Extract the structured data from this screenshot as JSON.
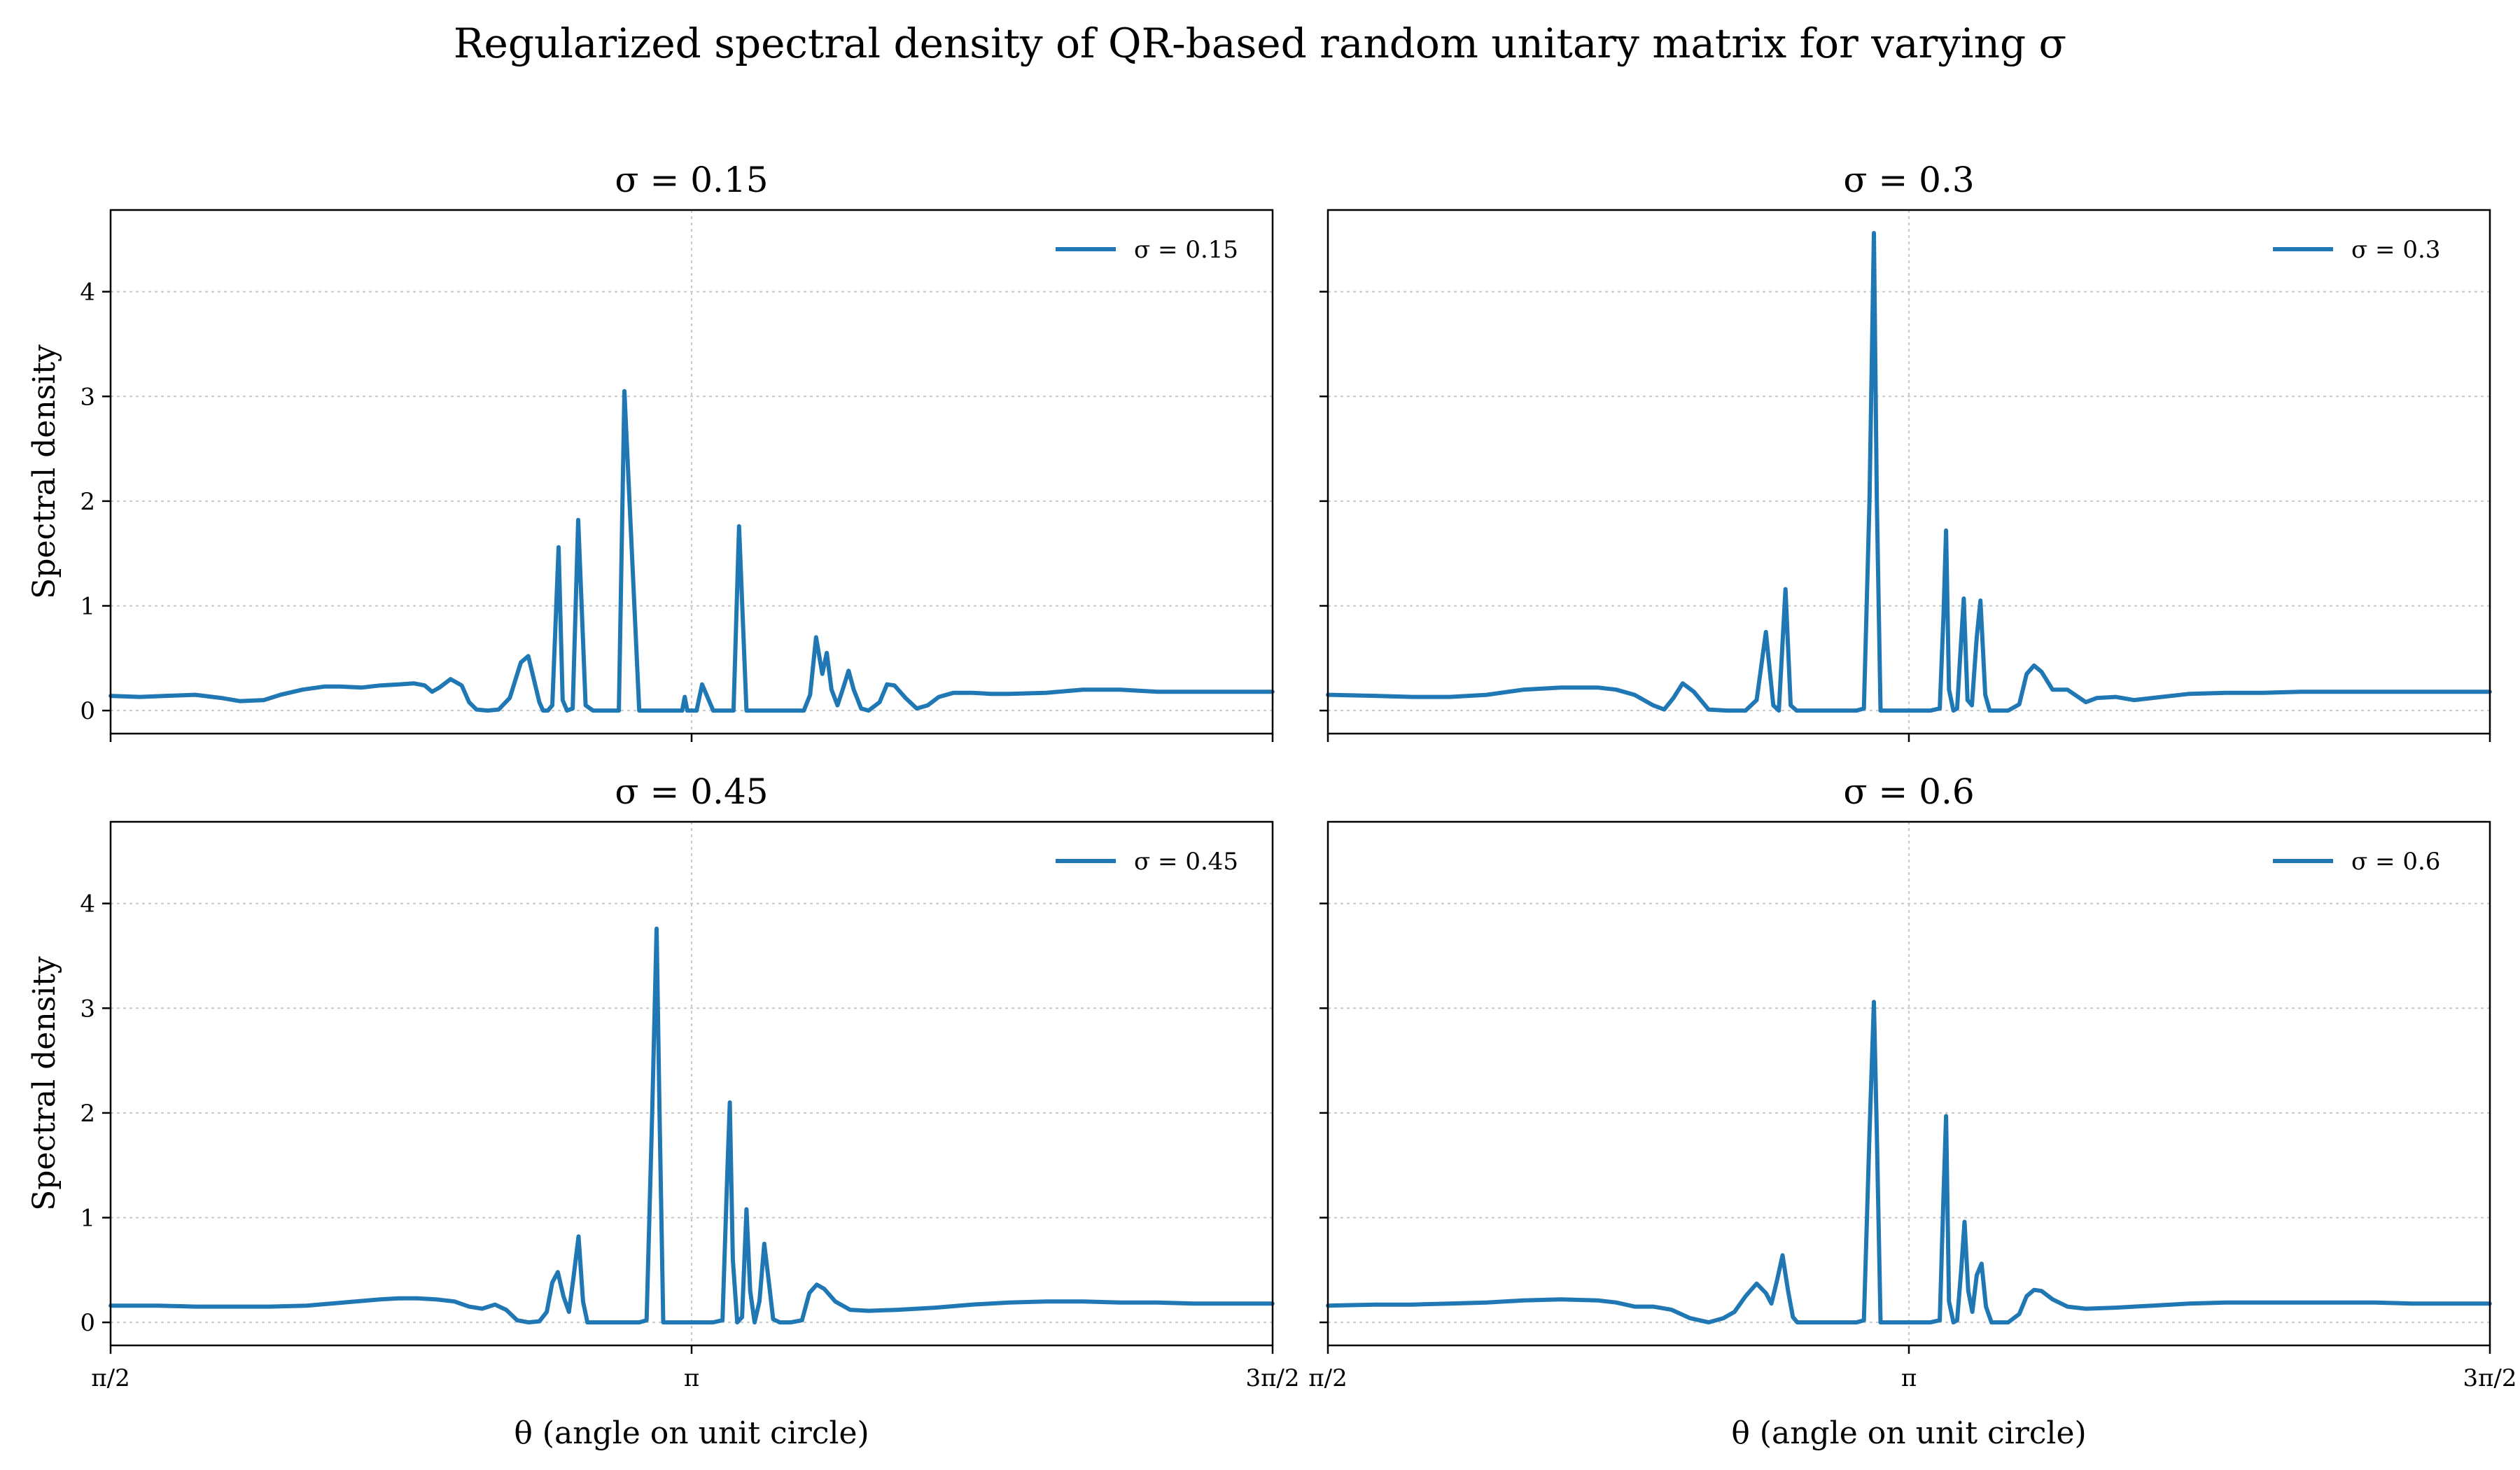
{
  "figure": {
    "title": "Regularized spectral density of QR-based random unitary matrix for varying σ",
    "line_color": "#1f77b4",
    "grid_color": "#c8c8c8"
  },
  "chart_data": [
    {
      "type": "line",
      "title": "σ = 0.15",
      "xlabel": "",
      "ylabel": "Spectral density",
      "xlim": [
        1.5708,
        4.7124
      ],
      "ylim": [
        -0.22,
        4.78
      ],
      "x_ticks": [
        1.5708,
        3.1416,
        4.7124
      ],
      "x_tick_labels": [],
      "y_ticks": [
        0,
        1,
        2,
        3,
        4
      ],
      "y_tick_labels": [
        "0",
        "1",
        "2",
        "3",
        "4"
      ],
      "grid": true,
      "legend": "top-right",
      "series": [
        {
          "name": "σ = 0.15",
          "x": [
            1.571,
            1.65,
            1.72,
            1.8,
            1.87,
            1.92,
            1.985,
            2.03,
            2.09,
            2.15,
            2.19,
            2.25,
            2.3,
            2.35,
            2.39,
            2.42,
            2.44,
            2.46,
            2.49,
            2.52,
            2.54,
            2.56,
            2.59,
            2.62,
            2.65,
            2.68,
            2.7,
            2.73,
            2.74,
            2.753,
            2.765,
            2.782,
            2.793,
            2.805,
            2.82,
            2.835,
            2.855,
            2.875,
            2.895,
            2.915,
            2.93,
            2.945,
            2.96,
            3.0,
            3.05,
            3.065,
            3.073,
            3.082,
            3.09,
            3.105,
            3.116,
            3.123,
            3.13,
            3.145,
            3.155,
            3.17,
            3.2,
            3.24,
            3.255,
            3.27,
            3.29,
            3.305,
            3.32,
            3.35,
            3.38,
            3.41,
            3.43,
            3.445,
            3.462,
            3.478,
            3.495,
            3.507,
            3.52,
            3.536,
            3.55,
            3.566,
            3.58,
            3.6,
            3.62,
            3.65,
            3.67,
            3.69,
            3.72,
            3.75,
            3.78,
            3.81,
            3.85,
            3.9,
            3.95,
            4.0,
            4.1,
            4.2,
            4.3,
            4.4,
            4.5,
            4.6,
            4.712
          ],
          "y": [
            0.14,
            0.13,
            0.14,
            0.15,
            0.12,
            0.09,
            0.1,
            0.15,
            0.2,
            0.23,
            0.23,
            0.22,
            0.24,
            0.25,
            0.26,
            0.24,
            0.18,
            0.22,
            0.3,
            0.24,
            0.08,
            0.01,
            0.0,
            0.01,
            0.12,
            0.46,
            0.52,
            0.08,
            0.0,
            0.0,
            0.05,
            1.56,
            0.1,
            0.0,
            0.02,
            1.82,
            0.05,
            0.0,
            0.0,
            0.0,
            0.0,
            0.0,
            3.05,
            0.0,
            0.0,
            0.0,
            0.0,
            0.0,
            0.0,
            0.0,
            0.0,
            0.13,
            0.0,
            0.0,
            0.0,
            0.25,
            0.0,
            0.0,
            0.0,
            1.76,
            0.0,
            0.0,
            0.0,
            0.0,
            0.0,
            0.0,
            0.0,
            0.0,
            0.15,
            0.7,
            0.35,
            0.55,
            0.2,
            0.05,
            0.2,
            0.38,
            0.2,
            0.02,
            0.0,
            0.08,
            0.25,
            0.24,
            0.12,
            0.02,
            0.05,
            0.13,
            0.17,
            0.17,
            0.16,
            0.16,
            0.17,
            0.2,
            0.2,
            0.18,
            0.18,
            0.18,
            0.18
          ]
        }
      ]
    },
    {
      "type": "line",
      "title": "σ = 0.3",
      "xlabel": "",
      "ylabel": "",
      "xlim": [
        1.5708,
        4.7124
      ],
      "ylim": [
        -0.22,
        4.78
      ],
      "x_ticks": [
        1.5708,
        3.1416,
        4.7124
      ],
      "x_tick_labels": [],
      "y_ticks": [
        0,
        1,
        2,
        3,
        4
      ],
      "y_tick_labels": [],
      "grid": true,
      "legend": "top-right",
      "series": [
        {
          "name": "σ = 0.3",
          "x": [
            1.571,
            1.7,
            1.8,
            1.9,
            2.0,
            2.1,
            2.2,
            2.3,
            2.35,
            2.4,
            2.45,
            2.48,
            2.505,
            2.53,
            2.56,
            2.6,
            2.65,
            2.7,
            2.73,
            2.755,
            2.775,
            2.79,
            2.808,
            2.822,
            2.838,
            2.855,
            2.88,
            2.92,
            2.96,
            3.0,
            3.02,
            3.035,
            3.047,
            3.055,
            3.065,
            3.08,
            3.1,
            3.15,
            3.2,
            3.225,
            3.235,
            3.242,
            3.25,
            3.262,
            3.272,
            3.28,
            3.29,
            3.3,
            3.312,
            3.325,
            3.335,
            3.348,
            3.36,
            3.38,
            3.41,
            3.44,
            3.46,
            3.48,
            3.5,
            3.53,
            3.57,
            3.62,
            3.65,
            3.7,
            3.75,
            3.8,
            3.9,
            4.0,
            4.1,
            4.2,
            4.3,
            4.4,
            4.5,
            4.6,
            4.712
          ],
          "y": [
            0.15,
            0.14,
            0.13,
            0.13,
            0.15,
            0.2,
            0.22,
            0.22,
            0.2,
            0.15,
            0.05,
            0.01,
            0.12,
            0.26,
            0.18,
            0.01,
            0.0,
            0.0,
            0.1,
            0.75,
            0.05,
            0.0,
            1.16,
            0.05,
            0.0,
            0.0,
            0.0,
            0.0,
            0.0,
            0.0,
            0.02,
            2.0,
            4.56,
            2.0,
            0.0,
            0.0,
            0.0,
            0.0,
            0.0,
            0.02,
            0.9,
            1.72,
            0.2,
            0.0,
            0.02,
            0.5,
            1.07,
            0.1,
            0.05,
            0.7,
            1.05,
            0.15,
            0.0,
            0.0,
            0.0,
            0.06,
            0.35,
            0.43,
            0.37,
            0.2,
            0.2,
            0.08,
            0.12,
            0.13,
            0.1,
            0.12,
            0.16,
            0.17,
            0.17,
            0.18,
            0.18,
            0.18,
            0.18,
            0.18,
            0.18
          ]
        }
      ]
    },
    {
      "type": "line",
      "title": "σ = 0.45",
      "xlabel": "θ (angle on unit circle)",
      "ylabel": "Spectral density",
      "xlim": [
        1.5708,
        4.7124
      ],
      "ylim": [
        -0.22,
        4.78
      ],
      "x_ticks": [
        1.5708,
        3.1416,
        4.7124
      ],
      "x_tick_labels": [
        "π/2",
        "π",
        "3π/2"
      ],
      "y_ticks": [
        0,
        1,
        2,
        3,
        4
      ],
      "y_tick_labels": [
        "0",
        "1",
        "2",
        "3",
        "4"
      ],
      "grid": true,
      "legend": "top-right",
      "series": [
        {
          "name": "σ = 0.45",
          "x": [
            1.571,
            1.7,
            1.8,
            1.9,
            2.0,
            2.1,
            2.2,
            2.3,
            2.35,
            2.4,
            2.45,
            2.5,
            2.54,
            2.575,
            2.61,
            2.64,
            2.67,
            2.7,
            2.73,
            2.75,
            2.765,
            2.78,
            2.795,
            2.81,
            2.822,
            2.836,
            2.848,
            2.86,
            2.88,
            2.92,
            2.96,
            3.0,
            3.02,
            3.035,
            3.047,
            3.055,
            3.065,
            3.08,
            3.1,
            3.15,
            3.2,
            3.225,
            3.238,
            3.245,
            3.253,
            3.265,
            3.278,
            3.29,
            3.3,
            3.312,
            3.325,
            3.338,
            3.35,
            3.362,
            3.38,
            3.41,
            3.44,
            3.46,
            3.48,
            3.5,
            3.53,
            3.57,
            3.62,
            3.7,
            3.8,
            3.9,
            4.0,
            4.1,
            4.2,
            4.3,
            4.4,
            4.5,
            4.6,
            4.712
          ],
          "y": [
            0.16,
            0.16,
            0.15,
            0.15,
            0.15,
            0.16,
            0.19,
            0.22,
            0.23,
            0.23,
            0.22,
            0.2,
            0.15,
            0.13,
            0.17,
            0.12,
            0.02,
            0.0,
            0.01,
            0.1,
            0.38,
            0.48,
            0.25,
            0.1,
            0.42,
            0.82,
            0.2,
            0.0,
            0.0,
            0.0,
            0.0,
            0.0,
            0.02,
            2.0,
            3.76,
            2.0,
            0.0,
            0.0,
            0.0,
            0.0,
            0.0,
            0.02,
            1.4,
            2.1,
            0.6,
            0.0,
            0.05,
            1.08,
            0.3,
            0.0,
            0.2,
            0.75,
            0.4,
            0.03,
            0.0,
            0.0,
            0.02,
            0.28,
            0.36,
            0.32,
            0.2,
            0.12,
            0.11,
            0.12,
            0.14,
            0.17,
            0.19,
            0.2,
            0.2,
            0.19,
            0.19,
            0.18,
            0.18,
            0.18
          ]
        }
      ]
    },
    {
      "type": "line",
      "title": "σ = 0.6",
      "xlabel": "θ (angle on unit circle)",
      "ylabel": "",
      "xlim": [
        1.5708,
        4.7124
      ],
      "ylim": [
        -0.22,
        4.78
      ],
      "x_ticks": [
        1.5708,
        3.1416,
        4.7124
      ],
      "x_tick_labels": [
        "π/2",
        "π",
        "3π/2"
      ],
      "y_ticks": [
        0,
        1,
        2,
        3,
        4
      ],
      "y_tick_labels": [],
      "grid": true,
      "legend": "top-right",
      "series": [
        {
          "name": "σ = 0.6",
          "x": [
            1.571,
            1.7,
            1.8,
            1.9,
            2.0,
            2.1,
            2.2,
            2.3,
            2.35,
            2.4,
            2.45,
            2.5,
            2.55,
            2.6,
            2.64,
            2.67,
            2.7,
            2.73,
            2.755,
            2.77,
            2.785,
            2.8,
            2.815,
            2.828,
            2.84,
            2.855,
            2.88,
            2.92,
            2.96,
            3.0,
            3.02,
            3.035,
            3.047,
            3.055,
            3.065,
            3.08,
            3.1,
            3.15,
            3.2,
            3.225,
            3.235,
            3.242,
            3.25,
            3.262,
            3.272,
            3.283,
            3.292,
            3.302,
            3.313,
            3.325,
            3.338,
            3.35,
            3.365,
            3.38,
            3.41,
            3.44,
            3.46,
            3.48,
            3.5,
            3.53,
            3.57,
            3.62,
            3.7,
            3.8,
            3.9,
            4.0,
            4.1,
            4.2,
            4.3,
            4.4,
            4.5,
            4.6,
            4.712
          ],
          "y": [
            0.16,
            0.17,
            0.17,
            0.18,
            0.19,
            0.21,
            0.22,
            0.21,
            0.19,
            0.15,
            0.15,
            0.12,
            0.04,
            0.0,
            0.04,
            0.1,
            0.25,
            0.37,
            0.28,
            0.18,
            0.4,
            0.64,
            0.3,
            0.05,
            0.0,
            0.0,
            0.0,
            0.0,
            0.0,
            0.0,
            0.02,
            1.8,
            3.06,
            1.8,
            0.0,
            0.0,
            0.0,
            0.0,
            0.0,
            0.02,
            1.2,
            1.97,
            0.2,
            0.0,
            0.02,
            0.5,
            0.96,
            0.3,
            0.1,
            0.45,
            0.56,
            0.15,
            0.0,
            0.0,
            0.0,
            0.08,
            0.25,
            0.31,
            0.3,
            0.22,
            0.15,
            0.13,
            0.14,
            0.16,
            0.18,
            0.19,
            0.19,
            0.19,
            0.19,
            0.19,
            0.18,
            0.18,
            0.18
          ]
        }
      ]
    }
  ]
}
